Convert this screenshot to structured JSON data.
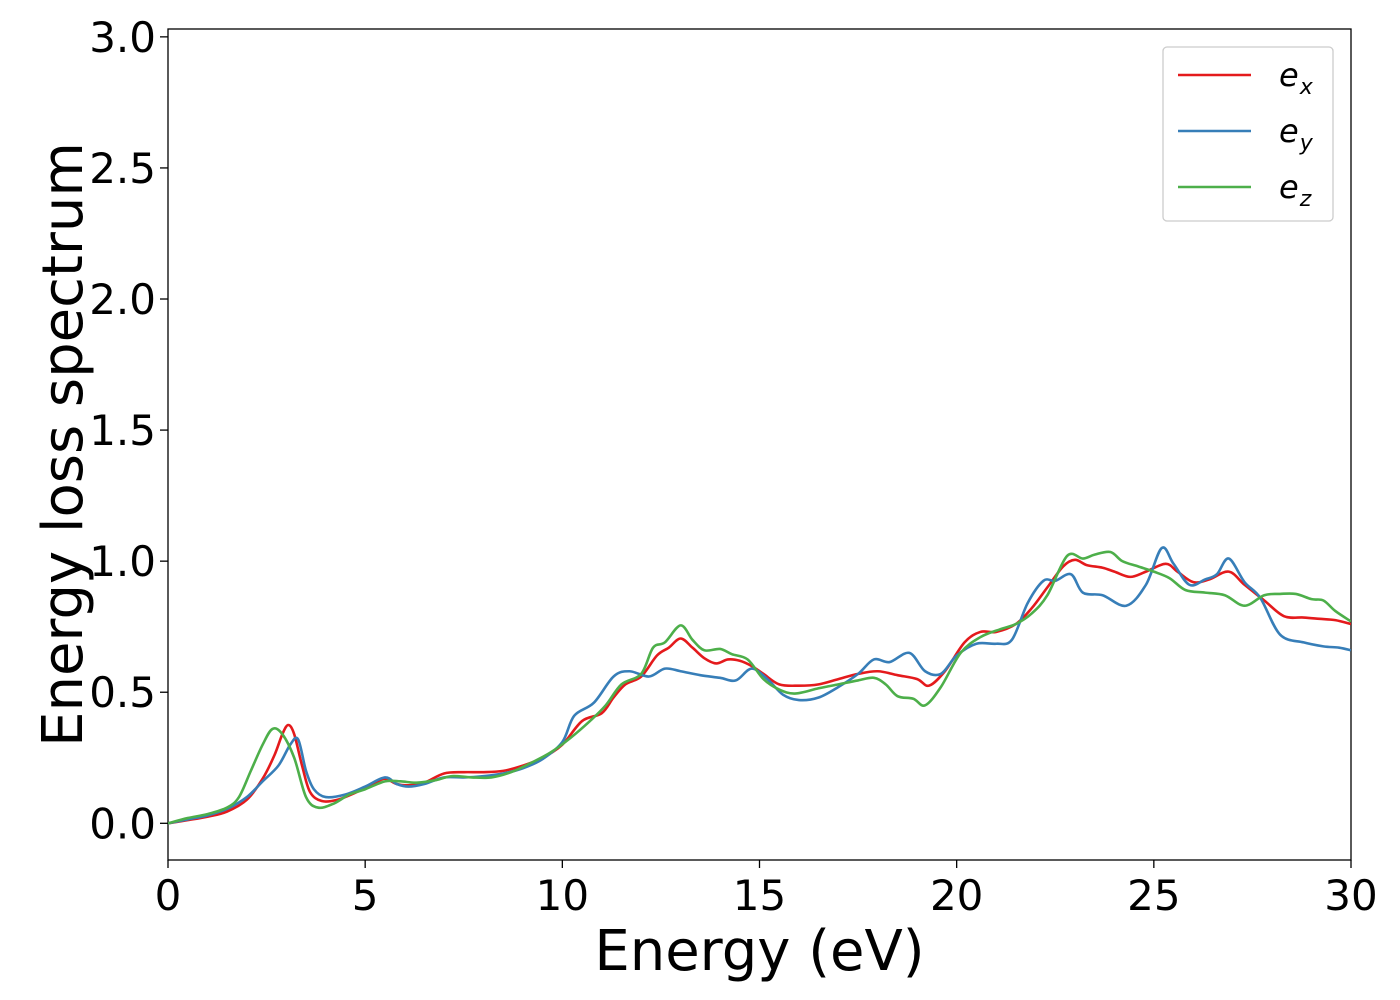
{
  "chart_data": {
    "type": "line",
    "xlabel": "Energy (eV)",
    "ylabel": "Energy loss spectrum",
    "xlim": [
      0,
      30
    ],
    "ylim": [
      -0.14,
      3.03
    ],
    "xticks": [
      0,
      5,
      10,
      15,
      20,
      25,
      30
    ],
    "yticks": [
      0.0,
      0.5,
      1.0,
      1.5,
      2.0,
      2.5,
      3.0
    ],
    "xtick_labels": [
      "0",
      "5",
      "10",
      "15",
      "20",
      "25",
      "30"
    ],
    "ytick_labels": [
      "0.0",
      "0.5",
      "1.0",
      "1.5",
      "2.0",
      "2.5",
      "3.0"
    ],
    "grid": false,
    "legend_position": "top-right",
    "series": [
      {
        "name": "e_x",
        "legend_main": "e",
        "legend_sub": "x",
        "color": "#e41a1c",
        "points": [
          [
            0,
            0.0
          ],
          [
            0.5,
            0.012
          ],
          [
            1.0,
            0.025
          ],
          [
            1.5,
            0.045
          ],
          [
            2.0,
            0.09
          ],
          [
            2.4,
            0.17
          ],
          [
            2.7,
            0.26
          ],
          [
            2.9,
            0.34
          ],
          [
            3.05,
            0.375
          ],
          [
            3.2,
            0.34
          ],
          [
            3.4,
            0.22
          ],
          [
            3.6,
            0.12
          ],
          [
            3.9,
            0.085
          ],
          [
            4.3,
            0.09
          ],
          [
            4.8,
            0.12
          ],
          [
            5.2,
            0.15
          ],
          [
            5.5,
            0.17
          ],
          [
            5.8,
            0.15
          ],
          [
            6.1,
            0.145
          ],
          [
            6.5,
            0.155
          ],
          [
            7.0,
            0.19
          ],
          [
            7.5,
            0.195
          ],
          [
            8.0,
            0.195
          ],
          [
            8.5,
            0.2
          ],
          [
            9.0,
            0.22
          ],
          [
            9.5,
            0.25
          ],
          [
            10.0,
            0.3
          ],
          [
            10.5,
            0.39
          ],
          [
            11.0,
            0.42
          ],
          [
            11.3,
            0.48
          ],
          [
            11.6,
            0.53
          ],
          [
            12.0,
            0.56
          ],
          [
            12.4,
            0.64
          ],
          [
            12.7,
            0.67
          ],
          [
            13.0,
            0.705
          ],
          [
            13.3,
            0.67
          ],
          [
            13.6,
            0.63
          ],
          [
            13.9,
            0.61
          ],
          [
            14.2,
            0.625
          ],
          [
            14.5,
            0.62
          ],
          [
            14.8,
            0.6
          ],
          [
            15.1,
            0.57
          ],
          [
            15.5,
            0.53
          ],
          [
            16.0,
            0.525
          ],
          [
            16.5,
            0.53
          ],
          [
            17.0,
            0.55
          ],
          [
            17.5,
            0.57
          ],
          [
            18.0,
            0.58
          ],
          [
            18.5,
            0.565
          ],
          [
            19.0,
            0.55
          ],
          [
            19.3,
            0.525
          ],
          [
            19.7,
            0.58
          ],
          [
            20.2,
            0.69
          ],
          [
            20.6,
            0.73
          ],
          [
            21.0,
            0.73
          ],
          [
            21.5,
            0.76
          ],
          [
            21.9,
            0.82
          ],
          [
            22.3,
            0.9
          ],
          [
            22.7,
            0.98
          ],
          [
            23.0,
            1.005
          ],
          [
            23.3,
            0.985
          ],
          [
            23.7,
            0.975
          ],
          [
            24.0,
            0.96
          ],
          [
            24.4,
            0.94
          ],
          [
            24.8,
            0.96
          ],
          [
            25.3,
            0.99
          ],
          [
            25.6,
            0.96
          ],
          [
            26.0,
            0.92
          ],
          [
            26.4,
            0.93
          ],
          [
            26.9,
            0.96
          ],
          [
            27.3,
            0.91
          ],
          [
            27.8,
            0.85
          ],
          [
            28.3,
            0.79
          ],
          [
            28.8,
            0.785
          ],
          [
            29.2,
            0.78
          ],
          [
            29.6,
            0.775
          ],
          [
            30.0,
            0.76
          ]
        ]
      },
      {
        "name": "e_y",
        "legend_main": "e",
        "legend_sub": "y",
        "color": "#377eb8",
        "points": [
          [
            0,
            0.0
          ],
          [
            0.5,
            0.015
          ],
          [
            1.0,
            0.03
          ],
          [
            1.5,
            0.055
          ],
          [
            2.0,
            0.1
          ],
          [
            2.4,
            0.16
          ],
          [
            2.8,
            0.22
          ],
          [
            3.1,
            0.3
          ],
          [
            3.3,
            0.32
          ],
          [
            3.5,
            0.2
          ],
          [
            3.7,
            0.13
          ],
          [
            4.0,
            0.1
          ],
          [
            4.5,
            0.11
          ],
          [
            5.0,
            0.14
          ],
          [
            5.5,
            0.175
          ],
          [
            5.8,
            0.15
          ],
          [
            6.1,
            0.14
          ],
          [
            6.5,
            0.15
          ],
          [
            7.0,
            0.175
          ],
          [
            7.5,
            0.175
          ],
          [
            8.0,
            0.18
          ],
          [
            8.5,
            0.19
          ],
          [
            9.0,
            0.21
          ],
          [
            9.5,
            0.245
          ],
          [
            10.0,
            0.31
          ],
          [
            10.3,
            0.41
          ],
          [
            10.8,
            0.46
          ],
          [
            11.3,
            0.56
          ],
          [
            11.7,
            0.58
          ],
          [
            12.2,
            0.56
          ],
          [
            12.6,
            0.59
          ],
          [
            13.0,
            0.58
          ],
          [
            13.5,
            0.565
          ],
          [
            14.0,
            0.555
          ],
          [
            14.4,
            0.545
          ],
          [
            14.8,
            0.59
          ],
          [
            15.2,
            0.55
          ],
          [
            15.6,
            0.49
          ],
          [
            16.0,
            0.47
          ],
          [
            16.5,
            0.48
          ],
          [
            17.0,
            0.52
          ],
          [
            17.5,
            0.57
          ],
          [
            17.9,
            0.625
          ],
          [
            18.3,
            0.615
          ],
          [
            18.8,
            0.65
          ],
          [
            19.2,
            0.58
          ],
          [
            19.6,
            0.57
          ],
          [
            20.0,
            0.64
          ],
          [
            20.5,
            0.685
          ],
          [
            21.0,
            0.685
          ],
          [
            21.4,
            0.7
          ],
          [
            21.8,
            0.84
          ],
          [
            22.2,
            0.925
          ],
          [
            22.5,
            0.925
          ],
          [
            22.9,
            0.95
          ],
          [
            23.2,
            0.88
          ],
          [
            23.7,
            0.87
          ],
          [
            24.3,
            0.83
          ],
          [
            24.8,
            0.91
          ],
          [
            25.2,
            1.05
          ],
          [
            25.5,
            0.99
          ],
          [
            25.9,
            0.91
          ],
          [
            26.3,
            0.93
          ],
          [
            26.6,
            0.95
          ],
          [
            26.9,
            1.01
          ],
          [
            27.3,
            0.92
          ],
          [
            27.7,
            0.86
          ],
          [
            28.2,
            0.72
          ],
          [
            28.8,
            0.69
          ],
          [
            29.3,
            0.675
          ],
          [
            29.7,
            0.67
          ],
          [
            30.0,
            0.66
          ]
        ]
      },
      {
        "name": "e_z",
        "legend_main": "e",
        "legend_sub": "z",
        "color": "#4daf4a",
        "points": [
          [
            0,
            0.0
          ],
          [
            0.5,
            0.02
          ],
          [
            1.0,
            0.035
          ],
          [
            1.5,
            0.06
          ],
          [
            1.8,
            0.1
          ],
          [
            2.1,
            0.2
          ],
          [
            2.4,
            0.3
          ],
          [
            2.65,
            0.36
          ],
          [
            2.9,
            0.34
          ],
          [
            3.2,
            0.25
          ],
          [
            3.5,
            0.1
          ],
          [
            3.8,
            0.06
          ],
          [
            4.2,
            0.075
          ],
          [
            4.6,
            0.11
          ],
          [
            5.0,
            0.13
          ],
          [
            5.5,
            0.16
          ],
          [
            5.9,
            0.16
          ],
          [
            6.3,
            0.155
          ],
          [
            6.8,
            0.165
          ],
          [
            7.2,
            0.18
          ],
          [
            7.7,
            0.175
          ],
          [
            8.2,
            0.175
          ],
          [
            8.7,
            0.195
          ],
          [
            9.2,
            0.23
          ],
          [
            9.7,
            0.27
          ],
          [
            10.2,
            0.325
          ],
          [
            10.7,
            0.39
          ],
          [
            11.1,
            0.45
          ],
          [
            11.5,
            0.53
          ],
          [
            12.0,
            0.57
          ],
          [
            12.3,
            0.67
          ],
          [
            12.6,
            0.69
          ],
          [
            13.0,
            0.755
          ],
          [
            13.3,
            0.7
          ],
          [
            13.6,
            0.66
          ],
          [
            14.0,
            0.665
          ],
          [
            14.3,
            0.645
          ],
          [
            14.7,
            0.625
          ],
          [
            15.1,
            0.55
          ],
          [
            15.5,
            0.51
          ],
          [
            15.9,
            0.495
          ],
          [
            16.5,
            0.515
          ],
          [
            17.0,
            0.53
          ],
          [
            17.5,
            0.545
          ],
          [
            17.9,
            0.555
          ],
          [
            18.2,
            0.53
          ],
          [
            18.5,
            0.485
          ],
          [
            18.9,
            0.475
          ],
          [
            19.2,
            0.45
          ],
          [
            19.6,
            0.52
          ],
          [
            20.1,
            0.65
          ],
          [
            20.6,
            0.71
          ],
          [
            21.1,
            0.74
          ],
          [
            21.5,
            0.76
          ],
          [
            21.9,
            0.8
          ],
          [
            22.3,
            0.87
          ],
          [
            22.8,
            1.02
          ],
          [
            23.2,
            1.01
          ],
          [
            23.5,
            1.025
          ],
          [
            23.9,
            1.035
          ],
          [
            24.2,
            1.0
          ],
          [
            24.6,
            0.98
          ],
          [
            25.0,
            0.96
          ],
          [
            25.4,
            0.935
          ],
          [
            25.8,
            0.89
          ],
          [
            26.3,
            0.88
          ],
          [
            26.8,
            0.87
          ],
          [
            27.3,
            0.83
          ],
          [
            27.8,
            0.87
          ],
          [
            28.2,
            0.875
          ],
          [
            28.6,
            0.875
          ],
          [
            29.0,
            0.855
          ],
          [
            29.3,
            0.85
          ],
          [
            29.6,
            0.81
          ],
          [
            30.0,
            0.77
          ]
        ]
      }
    ]
  }
}
